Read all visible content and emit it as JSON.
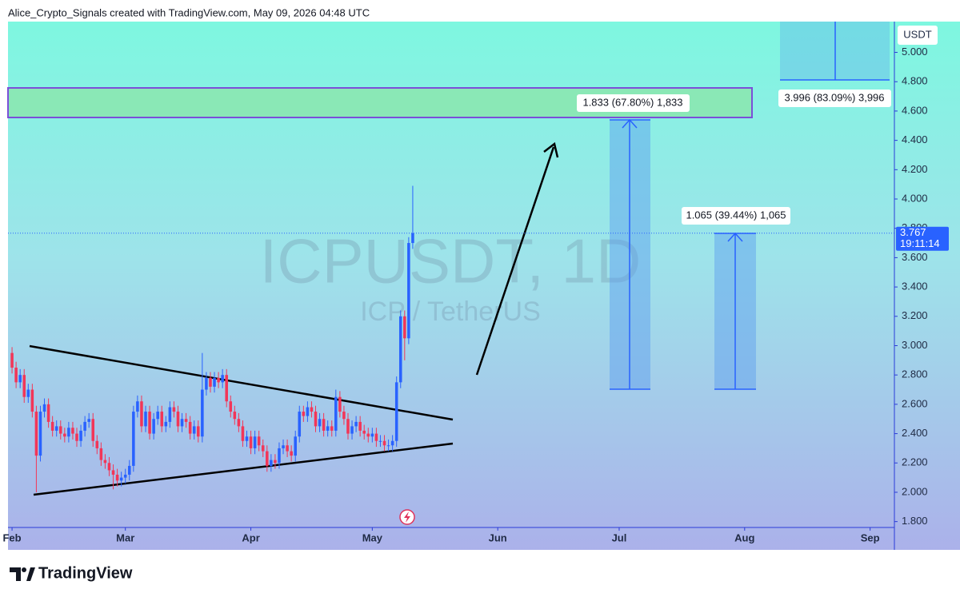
{
  "header": {
    "text": "Alice_Crypto_Signals created with TradingView.com, May 09, 2026 04:48 UTC"
  },
  "footer": {
    "brand": "TradingView"
  },
  "chart_data": {
    "type": "candlestick",
    "title": "ICPUSDT, 1D",
    "subtitle": "ICP / TetherUS",
    "y_axis_label": "USDT",
    "up_color": "#2962ff",
    "down_color": "#f23658",
    "x": [
      0,
      1,
      2,
      3,
      4,
      5,
      6,
      7,
      8,
      9,
      10,
      11,
      12,
      13,
      14,
      15,
      16,
      17,
      18,
      19,
      20,
      21,
      22,
      23,
      24,
      25,
      26,
      27,
      28,
      29,
      30,
      31,
      32,
      33,
      34,
      35,
      36,
      37,
      38,
      39,
      40,
      41,
      42,
      43,
      44,
      45,
      46,
      47,
      48,
      49,
      50,
      51,
      52,
      53,
      54,
      55,
      56,
      57,
      58,
      59,
      60,
      61,
      62,
      63,
      64,
      65,
      66,
      67,
      68,
      69,
      70,
      71,
      72,
      73,
      74,
      75,
      76,
      77,
      78,
      79,
      80,
      81,
      82,
      83,
      84,
      85,
      86,
      87,
      88,
      89,
      90,
      91,
      92,
      93,
      94,
      95,
      96,
      97,
      98,
      99
    ],
    "open": [
      2.95,
      2.85,
      2.75,
      2.8,
      2.65,
      2.7,
      2.55,
      2.25,
      2.55,
      2.6,
      2.48,
      2.42,
      2.45,
      2.4,
      2.38,
      2.44,
      2.4,
      2.35,
      2.42,
      2.48,
      2.5,
      2.35,
      2.3,
      2.22,
      2.2,
      2.15,
      2.12,
      2.08,
      2.1,
      2.12,
      2.18,
      2.55,
      2.62,
      2.45,
      2.55,
      2.4,
      2.5,
      2.55,
      2.45,
      2.48,
      2.58,
      2.55,
      2.45,
      2.5,
      2.48,
      2.4,
      2.45,
      2.38,
      2.7,
      2.78,
      2.72,
      2.78,
      2.75,
      2.8,
      2.62,
      2.55,
      2.5,
      2.45,
      2.35,
      2.38,
      2.3,
      2.38,
      2.32,
      2.28,
      2.18,
      2.22,
      2.2,
      2.3,
      2.32,
      2.28,
      2.25,
      2.38,
      2.55,
      2.52,
      2.58,
      2.55,
      2.45,
      2.5,
      2.42,
      2.45,
      2.42,
      2.65,
      2.55,
      2.5,
      2.4,
      2.45,
      2.48,
      2.42,
      2.4,
      2.38,
      2.4,
      2.35,
      2.35,
      2.32,
      2.32,
      2.35,
      2.75,
      3.2,
      3.05,
      3.7
    ],
    "high": [
      2.99,
      2.89,
      2.84,
      2.84,
      2.74,
      2.74,
      2.59,
      2.59,
      2.64,
      2.64,
      2.52,
      2.49,
      2.49,
      2.44,
      2.48,
      2.48,
      2.44,
      2.46,
      2.52,
      2.54,
      2.54,
      2.39,
      2.34,
      2.26,
      2.24,
      2.19,
      2.16,
      2.14,
      2.16,
      2.22,
      2.59,
      2.66,
      2.66,
      2.59,
      2.59,
      2.54,
      2.59,
      2.59,
      2.52,
      2.62,
      2.62,
      2.59,
      2.54,
      2.54,
      2.52,
      2.49,
      2.49,
      2.95,
      2.82,
      2.82,
      2.82,
      2.82,
      2.84,
      2.84,
      2.66,
      2.59,
      2.54,
      2.49,
      2.42,
      2.42,
      2.42,
      2.42,
      2.36,
      2.32,
      2.26,
      2.26,
      2.34,
      2.36,
      2.36,
      2.32,
      2.42,
      2.59,
      2.59,
      2.62,
      2.62,
      2.59,
      2.54,
      2.54,
      2.49,
      2.49,
      2.7,
      2.69,
      2.59,
      2.54,
      2.49,
      2.52,
      2.52,
      2.46,
      2.44,
      2.44,
      2.44,
      2.39,
      2.39,
      2.36,
      2.39,
      2.79,
      3.24,
      3.24,
      3.74,
      4.09
    ],
    "low": [
      2.81,
      2.71,
      2.71,
      2.61,
      2.61,
      2.51,
      2.0,
      2.21,
      2.51,
      2.44,
      2.38,
      2.38,
      2.36,
      2.34,
      2.34,
      2.36,
      2.31,
      2.31,
      2.38,
      2.44,
      2.31,
      2.26,
      2.18,
      2.16,
      2.11,
      2.02,
      2.04,
      2.04,
      2.06,
      2.08,
      2.14,
      2.51,
      2.41,
      2.41,
      2.36,
      2.36,
      2.46,
      2.41,
      2.41,
      2.44,
      2.51,
      2.41,
      2.41,
      2.44,
      2.36,
      2.36,
      2.34,
      2.34,
      2.66,
      2.68,
      2.68,
      2.71,
      2.71,
      2.58,
      2.51,
      2.46,
      2.41,
      2.31,
      2.31,
      2.26,
      2.26,
      2.28,
      2.24,
      2.14,
      2.14,
      2.16,
      2.16,
      2.26,
      2.24,
      2.21,
      2.21,
      2.34,
      2.48,
      2.48,
      2.51,
      2.41,
      2.41,
      2.38,
      2.38,
      2.38,
      2.38,
      2.51,
      2.46,
      2.36,
      2.36,
      2.41,
      2.38,
      2.36,
      2.34,
      2.34,
      2.31,
      2.31,
      2.28,
      2.28,
      2.28,
      2.31,
      2.71,
      2.9,
      3.01,
      3.66
    ],
    "close": [
      2.85,
      2.75,
      2.8,
      2.65,
      2.7,
      2.55,
      2.25,
      2.55,
      2.6,
      2.48,
      2.42,
      2.45,
      2.4,
      2.38,
      2.44,
      2.4,
      2.35,
      2.42,
      2.48,
      2.5,
      2.35,
      2.3,
      2.22,
      2.2,
      2.15,
      2.12,
      2.08,
      2.1,
      2.12,
      2.18,
      2.55,
      2.62,
      2.45,
      2.55,
      2.4,
      2.5,
      2.55,
      2.45,
      2.48,
      2.58,
      2.55,
      2.45,
      2.5,
      2.48,
      2.4,
      2.45,
      2.38,
      2.7,
      2.78,
      2.72,
      2.78,
      2.75,
      2.8,
      2.62,
      2.55,
      2.5,
      2.45,
      2.35,
      2.38,
      2.3,
      2.38,
      2.32,
      2.28,
      2.18,
      2.22,
      2.2,
      2.3,
      2.32,
      2.28,
      2.25,
      2.38,
      2.55,
      2.52,
      2.58,
      2.55,
      2.45,
      2.5,
      2.42,
      2.45,
      2.42,
      2.65,
      2.55,
      2.5,
      2.4,
      2.45,
      2.48,
      2.42,
      2.4,
      2.38,
      2.4,
      2.35,
      2.35,
      2.32,
      2.32,
      2.35,
      2.75,
      3.2,
      3.05,
      3.7,
      3.767
    ],
    "xlim": [
      -1,
      218
    ],
    "xticks": [
      {
        "value": 0,
        "label": "Feb"
      },
      {
        "value": 28,
        "label": "Mar"
      },
      {
        "value": 59,
        "label": "Apr"
      },
      {
        "value": 89,
        "label": "May"
      },
      {
        "value": 120,
        "label": "Jun"
      },
      {
        "value": 150,
        "label": "Jul"
      },
      {
        "value": 181,
        "label": "Aug"
      },
      {
        "value": 212,
        "label": "Sep"
      }
    ],
    "ylim": [
      1.76,
      5.21
    ],
    "yticks": [
      {
        "value": 1.8,
        "label": "1.800"
      },
      {
        "value": 2.0,
        "label": "2.000"
      },
      {
        "value": 2.2,
        "label": "2.200"
      },
      {
        "value": 2.4,
        "label": "2.400"
      },
      {
        "value": 2.6,
        "label": "2.600"
      },
      {
        "value": 2.8,
        "label": "2.800"
      },
      {
        "value": 3.0,
        "label": "3.000"
      },
      {
        "value": 3.2,
        "label": "3.200"
      },
      {
        "value": 3.4,
        "label": "3.400"
      },
      {
        "value": 3.6,
        "label": "3.600"
      },
      {
        "value": 3.8,
        "label": "3.800"
      },
      {
        "value": 4.0,
        "label": "4.000"
      },
      {
        "value": 4.2,
        "label": "4.200"
      },
      {
        "value": 4.4,
        "label": "4.400"
      },
      {
        "value": 4.6,
        "label": "4.600"
      },
      {
        "value": 4.8,
        "label": "4.800"
      },
      {
        "value": 5.0,
        "label": "5.000"
      }
    ],
    "last_price": 3.767,
    "countdown": "19:11:14",
    "annotations": [
      "1.833 (67.80%) 1,833",
      "1.065 (39.44%) 1,065",
      "3.996 (83.09%) 3,996"
    ]
  }
}
